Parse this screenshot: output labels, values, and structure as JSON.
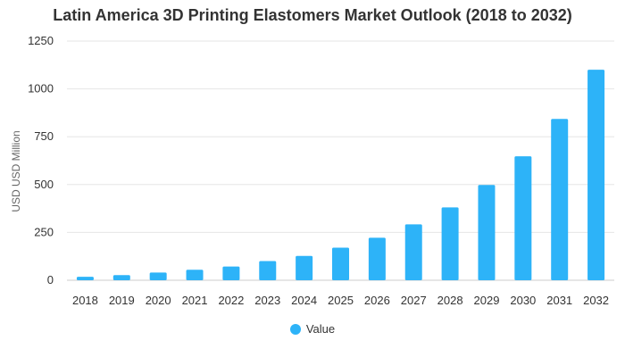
{
  "chart_data": {
    "type": "bar",
    "title": "Latin America 3D Printing Elastomers Market Outlook (2018 to 2032)",
    "xlabel": "",
    "ylabel": "USD USD Million",
    "categories": [
      "2018",
      "2019",
      "2020",
      "2021",
      "2022",
      "2023",
      "2024",
      "2025",
      "2026",
      "2027",
      "2028",
      "2029",
      "2030",
      "2031",
      "2032"
    ],
    "series": [
      {
        "name": "Value",
        "color": "#2db3f8",
        "values": [
          18,
          27,
          40,
          55,
          72,
          100,
          127,
          170,
          222,
          292,
          381,
          498,
          648,
          843,
          1100
        ]
      }
    ],
    "ylim": [
      0,
      1250
    ],
    "yticks": [
      0,
      250,
      500,
      750,
      1000,
      1250
    ],
    "grid": true,
    "legend_position": "bottom"
  }
}
